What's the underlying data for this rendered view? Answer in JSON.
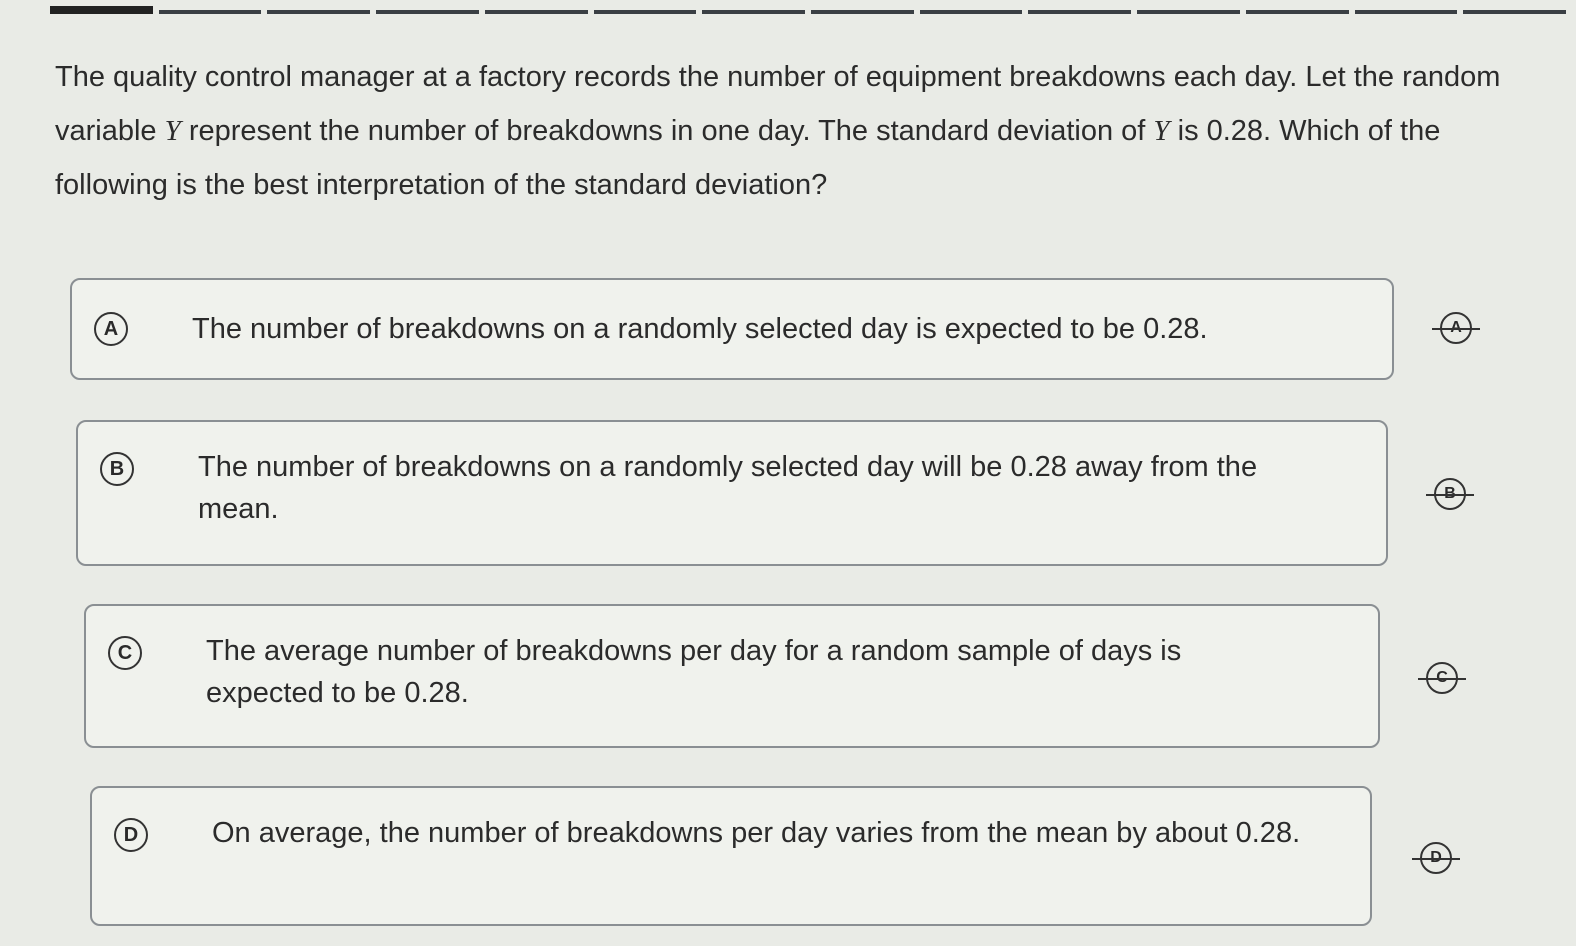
{
  "question": {
    "text_1": "The quality control manager at a factory records the number of equipment breakdowns each day. Let the random variable ",
    "var": "Y",
    "text_2": " represent the number of breakdowns in one day. The standard deviation of ",
    "text_3": " is 0.28. Which of the following is the best interpretation of the standard deviation?"
  },
  "choices": [
    {
      "letter": "A",
      "text": "The number of breakdowns on a randomly selected day is expected to be 0.28."
    },
    {
      "letter": "B",
      "text": "The number of breakdowns on a randomly selected day will be 0.28 away from the mean."
    },
    {
      "letter": "C",
      "text": "The average number of breakdowns per day for a random sample of days is expected to be 0.28."
    },
    {
      "letter": "D",
      "text": "On average, the number of breakdowns per day varies from the mean by about 0.28."
    }
  ],
  "icons": {
    "eliminate": "strikethrough-letter-icon"
  }
}
